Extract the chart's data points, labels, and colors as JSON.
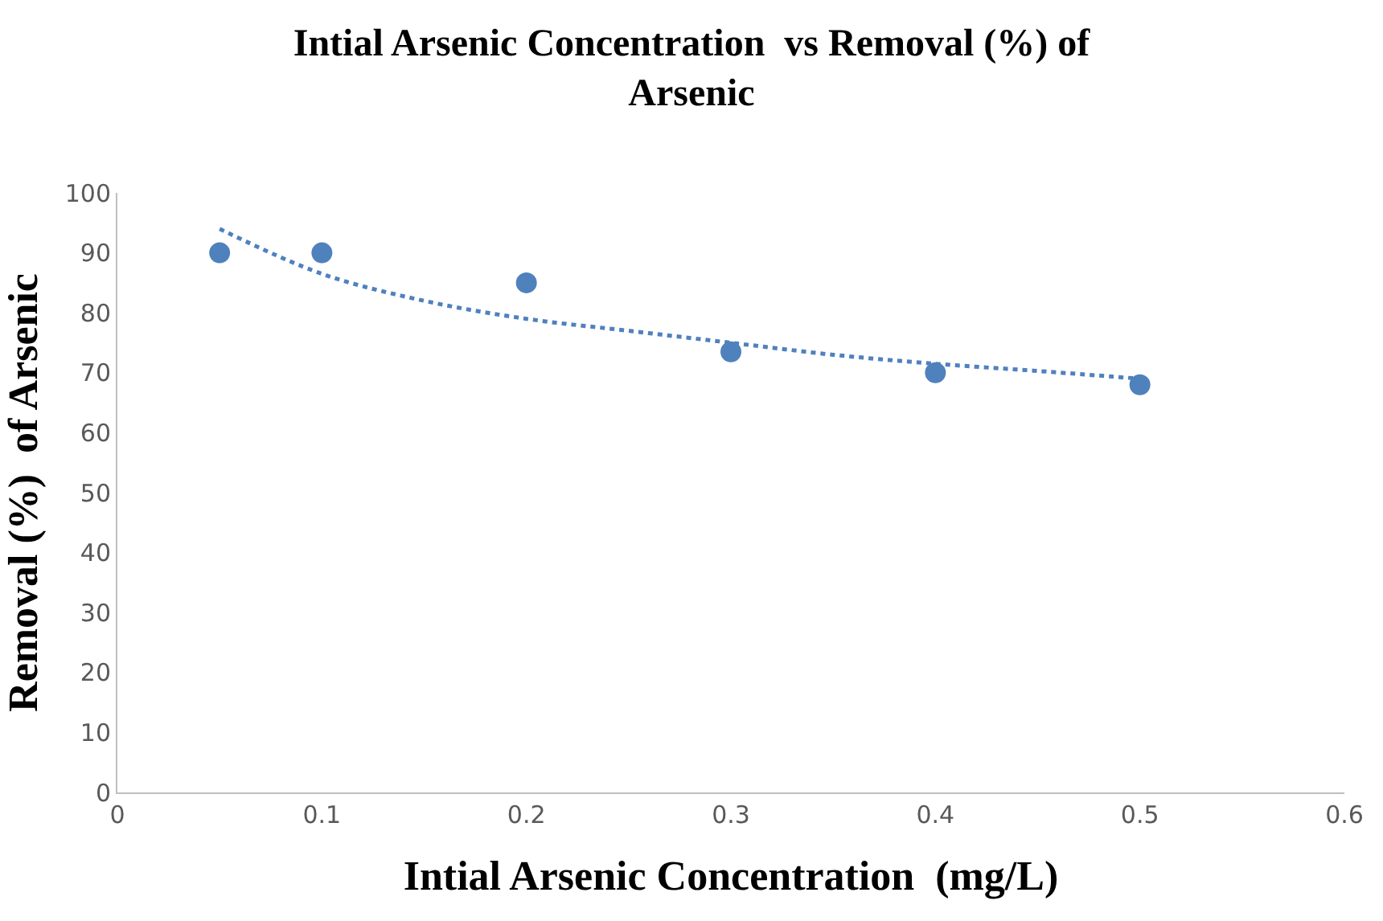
{
  "chart_data": {
    "type": "scatter",
    "title": "Intial Arsenic Concentration  vs Removal (%) of Arsenic",
    "xlabel": "Intial Arsenic Concentration  (mg/L)",
    "ylabel": "Removal (%)  of Arsenic",
    "series": [
      {
        "color": "#4f81bd",
        "marker": "circle",
        "x": [
          0.05,
          0.1,
          0.2,
          0.3,
          0.4,
          0.5
        ],
        "values": [
          90,
          90,
          85,
          73.5,
          70,
          68
        ]
      },
      {
        "type": "line",
        "color": "#4f81bd",
        "line_style": "dotted",
        "x": [
          0.05,
          0.1,
          0.15,
          0.2,
          0.25,
          0.3,
          0.35,
          0.4,
          0.45,
          0.5
        ],
        "values": [
          94,
          86.5,
          82,
          79,
          77,
          75,
          73,
          71.5,
          70.3,
          69
        ]
      }
    ],
    "xlim": [
      0,
      0.6
    ],
    "xticks": [
      0,
      0.1,
      0.2,
      0.3,
      0.4,
      0.5,
      0.6
    ],
    "ylim": [
      0,
      100
    ],
    "yticks": [
      0,
      10,
      20,
      30,
      40,
      50,
      60,
      70,
      80,
      90,
      100
    ]
  }
}
